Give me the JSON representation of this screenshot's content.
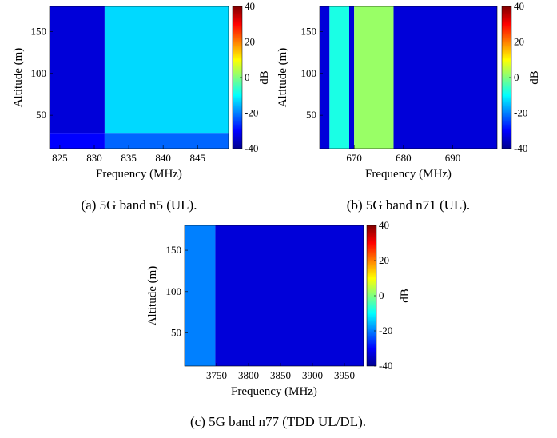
{
  "chart_data": [
    {
      "type": "heatmap",
      "caption": "(a) 5G band n5 (UL).",
      "xlabel": "Frequency (MHz)",
      "ylabel": "Altitude (m)",
      "xlim": [
        823.5,
        849.5
      ],
      "ylim": [
        10,
        180
      ],
      "xticks": [
        825,
        830,
        835,
        840,
        845
      ],
      "yticks": [
        50,
        100,
        150
      ],
      "colorbar": {
        "label": "dB",
        "min": -40,
        "max": 40,
        "ticks": [
          40,
          20,
          0,
          -20,
          -40
        ]
      },
      "regions": [
        {
          "x": [
            823.5,
            831.5
          ],
          "y": [
            10,
            28
          ],
          "level_db": -30
        },
        {
          "x": [
            823.5,
            831.5
          ],
          "y": [
            28,
            180
          ],
          "level_db": -33
        },
        {
          "x": [
            831.5,
            849.5
          ],
          "y": [
            10,
            28
          ],
          "level_db": -22
        },
        {
          "x": [
            831.5,
            849.5
          ],
          "y": [
            28,
            180
          ],
          "level_db": -13
        }
      ]
    },
    {
      "type": "heatmap",
      "caption": "(b) 5G band n71 (UL).",
      "xlabel": "Frequency (MHz)",
      "ylabel": "Altitude (m)",
      "xlim": [
        663,
        699
      ],
      "ylim": [
        10,
        180
      ],
      "xticks": [
        670,
        680,
        690
      ],
      "yticks": [
        50,
        100,
        150
      ],
      "colorbar": {
        "label": "dB",
        "min": -40,
        "max": 40,
        "ticks": [
          40,
          20,
          0,
          -20,
          -40
        ]
      },
      "regions": [
        {
          "x": [
            663,
            665
          ],
          "y": [
            10,
            180
          ],
          "level_db": -33
        },
        {
          "x": [
            665,
            669
          ],
          "y": [
            10,
            180
          ],
          "level_db": -8
        },
        {
          "x": [
            669,
            670
          ],
          "y": [
            10,
            180
          ],
          "level_db": -33
        },
        {
          "x": [
            670,
            678
          ],
          "y": [
            10,
            180
          ],
          "level_db": 2
        },
        {
          "x": [
            678,
            699
          ],
          "y": [
            10,
            180
          ],
          "level_db": -33
        }
      ]
    },
    {
      "type": "heatmap",
      "caption": "(c) 5G band n77 (TDD UL/DL).",
      "xlabel": "Frequency (MHz)",
      "ylabel": "Altitude (m)",
      "xlim": [
        3700,
        3980
      ],
      "ylim": [
        10,
        180
      ],
      "xticks": [
        3750,
        3800,
        3850,
        3900,
        3950
      ],
      "yticks": [
        50,
        100,
        150
      ],
      "colorbar": {
        "label": "dB",
        "min": -40,
        "max": 40,
        "ticks": [
          40,
          20,
          0,
          -20,
          -40
        ]
      },
      "regions": [
        {
          "x": [
            3700,
            3748
          ],
          "y": [
            10,
            180
          ],
          "level_db": -20
        },
        {
          "x": [
            3748,
            3980
          ],
          "y": [
            10,
            180
          ],
          "level_db": -33
        }
      ]
    }
  ]
}
